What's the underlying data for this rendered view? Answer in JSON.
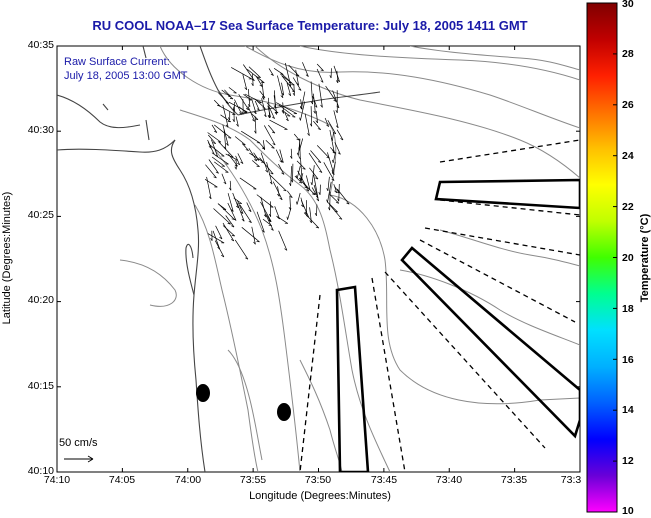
{
  "title": "RU COOL  NOAA–17  Sea Surface Temperature:  July 18, 2005 1411 GMT",
  "current": {
    "title": "Raw Surface Current:",
    "time": "July 18, 2005 13:00 GMT",
    "scale_label": "50 cm/s"
  },
  "axes": {
    "xlabel": "Longitude (Degrees:Minutes)",
    "ylabel": "Latitude (Degrees:Minutes)",
    "xticks": [
      "74:10",
      "74:05",
      "74:00",
      "73:55",
      "73:50",
      "73:45",
      "73:40",
      "73:35",
      "73:3"
    ],
    "yticks": [
      "40:35",
      "40:30",
      "40:25",
      "40:20",
      "40:15",
      "40:10"
    ]
  },
  "colorbar": {
    "label": "Temperature (°C)",
    "ticks": [
      "30",
      "28",
      "26",
      "24",
      "22",
      "20",
      "18",
      "16",
      "14",
      "12",
      "10"
    ],
    "colors": [
      "#ff00ff",
      "#6a00d8",
      "#0000ff",
      "#0060ff",
      "#00b0ff",
      "#00e0ff",
      "#00ff90",
      "#40ff00",
      "#c0ff00",
      "#ffff00",
      "#ffc000",
      "#ff7000",
      "#ff2000",
      "#c00000",
      "#800000"
    ]
  },
  "colors": {
    "title": "#1a1aa8",
    "contour": "#8a8a8a",
    "coast": "#444444"
  }
}
